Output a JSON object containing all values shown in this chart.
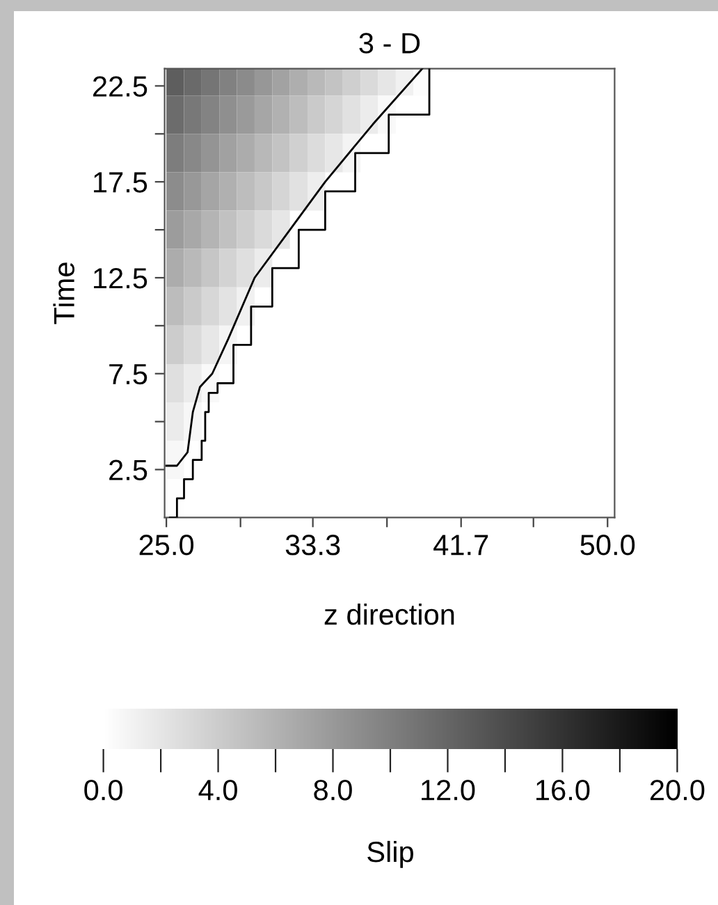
{
  "chart_data": {
    "type": "heatmap",
    "title": "3 - D",
    "xlabel": "z direction",
    "ylabel": "Time",
    "clabel": "Slip",
    "x": [
      25.5,
      26.5,
      27.5,
      28.5,
      29.5,
      30.5,
      31.5,
      32.5,
      33.5,
      34.5,
      35.5,
      36.5,
      37.5,
      38.5,
      39.5
    ],
    "y": [
      23,
      21,
      19,
      17,
      15,
      13,
      11,
      9,
      7,
      5,
      3,
      1
    ],
    "cells": [
      [
        12.6,
        11.7,
        10.8,
        9.9,
        9.1,
        8.2,
        7.3,
        6.4,
        5.5,
        4.7,
        3.8,
        2.9,
        2.0,
        1.1,
        0.3
      ],
      [
        11.5,
        10.6,
        9.7,
        8.8,
        7.9,
        7.0,
        6.1,
        5.2,
        4.2,
        3.3,
        2.4,
        1.5,
        0.5,
        null,
        null
      ],
      [
        10.2,
        9.3,
        8.4,
        7.4,
        6.5,
        5.6,
        4.7,
        3.7,
        2.8,
        1.9,
        0.9,
        null,
        null,
        null,
        null
      ],
      [
        9.0,
        8.1,
        7.1,
        6.2,
        5.2,
        4.3,
        3.3,
        2.4,
        1.4,
        null,
        null,
        null,
        null,
        null,
        null
      ],
      [
        7.8,
        6.8,
        5.9,
        4.9,
        3.9,
        2.9,
        2.0,
        null,
        null,
        null,
        null,
        null,
        null,
        null,
        null
      ],
      [
        6.5,
        5.5,
        4.5,
        3.5,
        2.5,
        1.5,
        null,
        null,
        null,
        null,
        null,
        null,
        null,
        null,
        null
      ],
      [
        5.3,
        4.2,
        3.2,
        2.2,
        1.1,
        null,
        null,
        null,
        null,
        null,
        null,
        null,
        null,
        null,
        null
      ],
      [
        4.0,
        2.9,
        1.9,
        0.8,
        null,
        null,
        null,
        null,
        null,
        null,
        null,
        null,
        null,
        null,
        null
      ],
      [
        2.5,
        1.5,
        0.5,
        null,
        null,
        null,
        null,
        null,
        null,
        null,
        null,
        null,
        null,
        null,
        null
      ],
      [
        1.6,
        0.7,
        null,
        null,
        null,
        null,
        null,
        null,
        null,
        null,
        null,
        null,
        null,
        null,
        null
      ],
      [
        0.7,
        null,
        null,
        null,
        null,
        null,
        null,
        null,
        null,
        null,
        null,
        null,
        null,
        null,
        null
      ],
      [
        0.1,
        null,
        null,
        null,
        null,
        null,
        null,
        null,
        null,
        null,
        null,
        null,
        null,
        null,
        null
      ]
    ],
    "series": [
      {
        "type": "line",
        "color": "#000000",
        "x": [
          25,
          25.6,
          26.2,
          26.5,
          26.9,
          27.6,
          28.5,
          30.0,
          32.0,
          34.0,
          36.7,
          39.5
        ],
        "values": [
          2.7,
          2.7,
          3.4,
          5.5,
          6.8,
          7.5,
          9.3,
          12.5,
          15.0,
          17.5,
          20.5,
          23.4
        ]
      },
      {
        "type": "step",
        "color": "#000000",
        "x": [
          25.2,
          25.6,
          26.0,
          26.5,
          27.0,
          27.2,
          27.4,
          27.9,
          28.8,
          29.8,
          31.0,
          32.5,
          34.0,
          35.7,
          37.6,
          39.9
        ],
        "values": [
          0,
          1,
          2,
          3,
          4,
          5.5,
          6.5,
          7,
          9,
          11,
          13,
          15,
          17,
          19,
          21,
          23.4
        ]
      }
    ],
    "xlim": [
      24.9,
      50.4
    ],
    "ylim": [
      0,
      23.4
    ],
    "xticks": [
      {
        "value": 25,
        "label": "25.0"
      },
      {
        "value": 29.2,
        "label": null
      },
      {
        "value": 33.3,
        "label": "33.3"
      },
      {
        "value": 37.5,
        "label": null
      },
      {
        "value": 41.7,
        "label": "41.7"
      },
      {
        "value": 45.8,
        "label": null
      },
      {
        "value": 50,
        "label": "50.0"
      }
    ],
    "yticks": [
      2.5,
      {
        "value": 5,
        "label": null
      },
      7.5,
      {
        "value": 10,
        "label": null
      },
      12.5,
      {
        "value": 15,
        "label": null
      },
      17.5,
      {
        "value": 20,
        "label": null
      },
      22.5
    ],
    "clim": [
      0,
      20
    ],
    "cticks": [
      {
        "value": 0,
        "label": "0.0"
      },
      {
        "value": 2,
        "label": null
      },
      {
        "value": 4,
        "label": "4.0"
      },
      {
        "value": 6,
        "label": null
      },
      {
        "value": 8,
        "label": "8.0"
      },
      {
        "value": 10,
        "label": null
      },
      {
        "value": 12,
        "label": "12.0"
      },
      {
        "value": 14,
        "label": null
      },
      {
        "value": 16,
        "label": "16.0"
      },
      {
        "value": 18,
        "label": null
      },
      {
        "value": 20,
        "label": "20.0"
      }
    ],
    "grid": false
  }
}
